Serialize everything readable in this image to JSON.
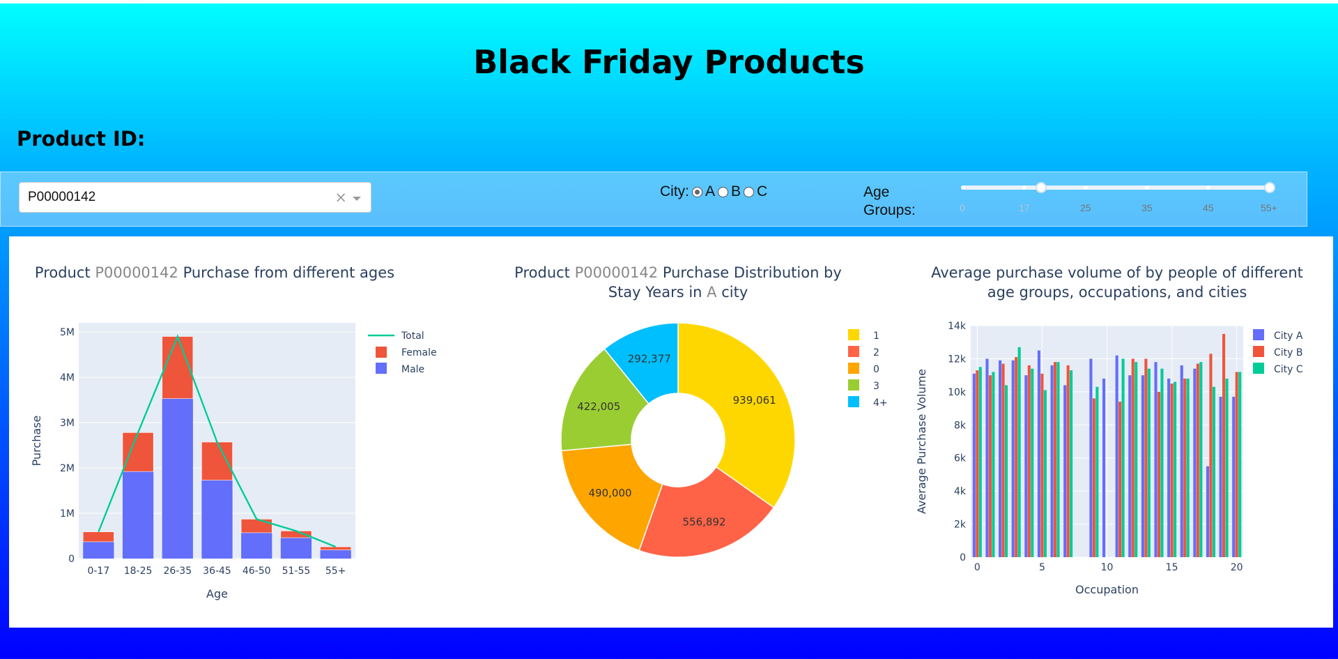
{
  "header": {
    "title": "Black Friday Products"
  },
  "controls": {
    "product_label": "Product ID:",
    "product_value": "P00000142",
    "clear_symbol": "×",
    "city_label": "City:",
    "city_options": [
      "A",
      "B",
      "C"
    ],
    "city_selected": "A",
    "age_label_line1": "Age",
    "age_label_line2": "Groups:",
    "age_ticks": [
      "0",
      "17",
      "25",
      "35",
      "45",
      "55+"
    ],
    "age_range": [
      17,
      55
    ]
  },
  "charts": {
    "left_title_pre": "Product ",
    "left_title_hl": "P00000142",
    "left_title_post": " Purchase from different ages",
    "mid_title_pre": "Product ",
    "mid_title_hl": "P00000142",
    "mid_title_post": " Purchase Distribution by",
    "mid_title_line2_pre": "Stay Years in ",
    "mid_title_line2_hl": "A",
    "mid_title_line2_post": " city",
    "right_title_line1": "Average purchase volume of by people of different",
    "right_title_line2": "age groups, occupations, and cities"
  },
  "chart_data": [
    {
      "type": "bar",
      "stacked": true,
      "categories": [
        "0-17",
        "18-25",
        "26-35",
        "36-45",
        "46-50",
        "51-55",
        "55+"
      ],
      "series": [
        {
          "name": "Male",
          "color": "#636efa",
          "values": [
            370000,
            1920000,
            3530000,
            1730000,
            570000,
            460000,
            190000
          ]
        },
        {
          "name": "Female",
          "color": "#ef553b",
          "values": [
            220000,
            860000,
            1370000,
            840000,
            300000,
            150000,
            70000
          ]
        },
        {
          "name": "Total",
          "type": "line",
          "color": "#00cc96",
          "values": [
            590000,
            2780000,
            4900000,
            2570000,
            870000,
            610000,
            260000
          ]
        }
      ],
      "legend": [
        "Total",
        "Female",
        "Male"
      ],
      "xlabel": "Age",
      "ylabel": "Purchase",
      "ylim": [
        0,
        5200000
      ],
      "yticks": [
        0,
        1000000,
        2000000,
        3000000,
        4000000,
        5000000
      ],
      "yticklabels": [
        "0",
        "1M",
        "2M",
        "3M",
        "4M",
        "5M"
      ],
      "grid": true,
      "legend_position": "top-right"
    },
    {
      "type": "pie",
      "hole": true,
      "labels": [
        "1",
        "2",
        "0",
        "3",
        "4+"
      ],
      "values": [
        939061,
        556892,
        490000,
        422005,
        292377
      ],
      "value_labels": [
        "939,061",
        "556,892",
        "490,000",
        "422,005",
        "292,377"
      ],
      "colors": [
        "#ffd700",
        "#ff6347",
        "#ffa500",
        "#9acd32",
        "#00bfff"
      ],
      "legend_order": [
        "1",
        "2",
        "0",
        "3",
        "4+"
      ],
      "legend_position": "top-right"
    },
    {
      "type": "bar",
      "grouped": true,
      "x": [
        0,
        1,
        2,
        3,
        4,
        5,
        6,
        7,
        8,
        9,
        10,
        11,
        12,
        13,
        14,
        15,
        16,
        17,
        18,
        19,
        20
      ],
      "series": [
        {
          "name": "City A",
          "color": "#636efa",
          "values": [
            11100,
            12000,
            11900,
            11900,
            11000,
            12500,
            11600,
            10400,
            null,
            12000,
            10800,
            12200,
            11000,
            11000,
            11800,
            10800,
            11600,
            11400,
            5500,
            9700,
            9700
          ]
        },
        {
          "name": "City B",
          "color": "#ef553b",
          "values": [
            11300,
            11000,
            11700,
            12100,
            11600,
            11100,
            11800,
            11600,
            null,
            9600,
            null,
            9400,
            12000,
            12000,
            10000,
            10500,
            10800,
            11700,
            12300,
            13500,
            11200
          ]
        },
        {
          "name": "City C",
          "color": "#00cc96",
          "values": [
            11500,
            11200,
            10400,
            12700,
            11400,
            10100,
            11800,
            11300,
            null,
            10300,
            null,
            12000,
            11800,
            11400,
            11400,
            10600,
            10800,
            11800,
            10300,
            10800,
            11200
          ]
        }
      ],
      "legend": [
        "City A",
        "City B",
        "City C"
      ],
      "xlabel": "Occupation",
      "ylabel": "Average Purchase Volume",
      "xticks": [
        0,
        5,
        10,
        15,
        20
      ],
      "ylim": [
        0,
        14000
      ],
      "yticks": [
        0,
        2000,
        4000,
        6000,
        8000,
        10000,
        12000,
        14000
      ],
      "yticklabels": [
        "0",
        "2k",
        "4k",
        "6k",
        "8k",
        "10k",
        "12k",
        "14k"
      ],
      "grid": true,
      "legend_position": "top-right"
    }
  ]
}
